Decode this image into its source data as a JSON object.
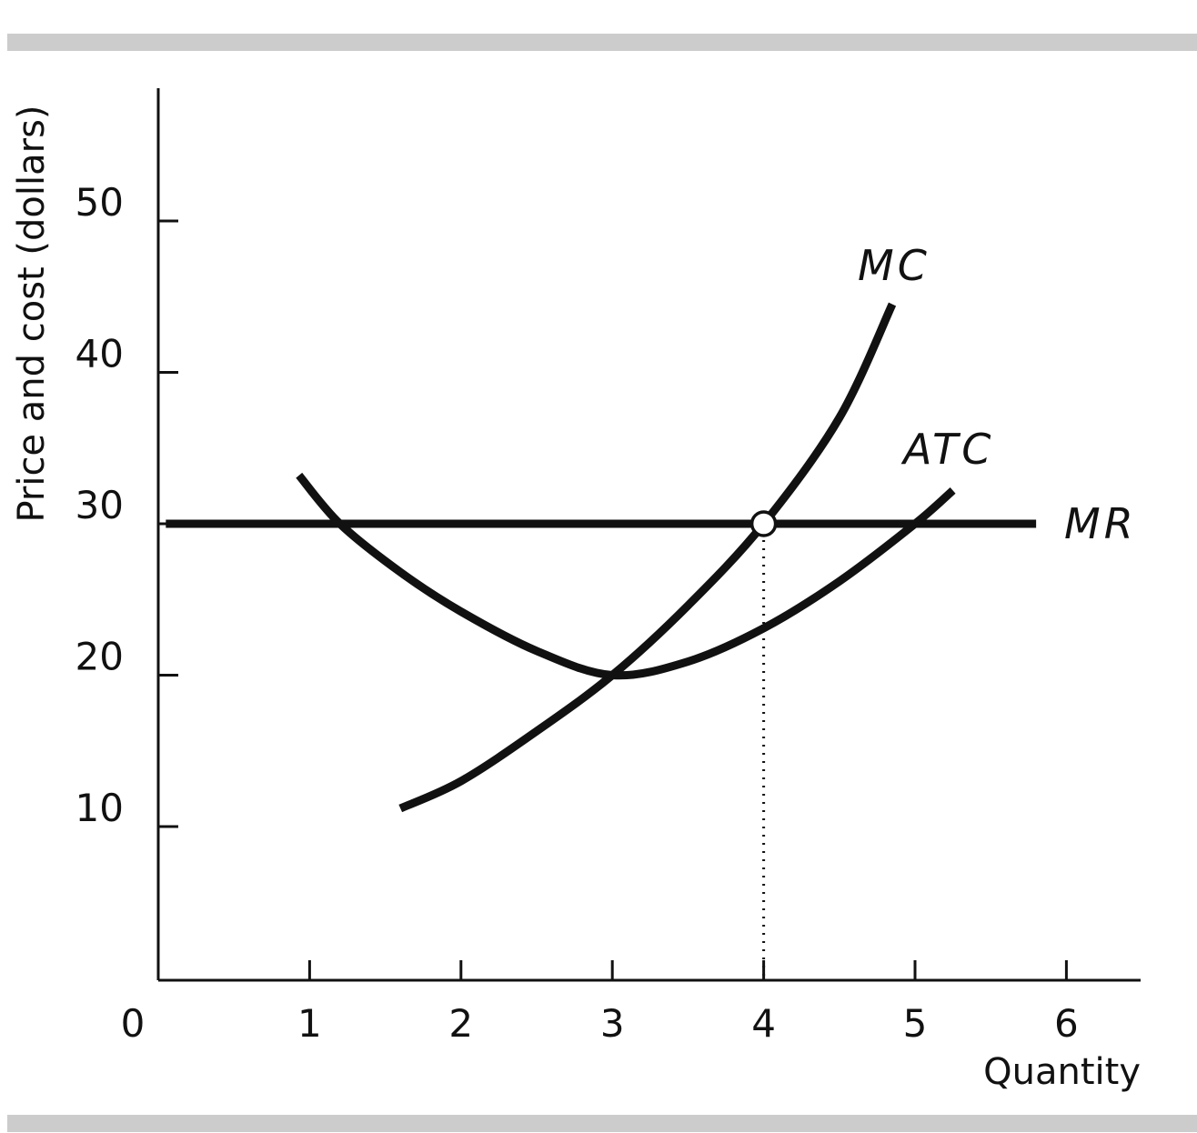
{
  "chart_data": {
    "type": "line",
    "xlabel": "Quantity",
    "ylabel": "Price and cost (dollars)",
    "origin_label": "0",
    "xlim": [
      0,
      6.5
    ],
    "ylim": [
      4.6,
      59
    ],
    "x_ticks": [
      1,
      2,
      3,
      4,
      5,
      6
    ],
    "y_ticks": [
      10,
      20,
      30,
      40,
      50
    ],
    "grid": false,
    "series": [
      {
        "name": "MC",
        "x": [
          1.6,
          2.0,
          2.5,
          3.0,
          3.5,
          4.0,
          4.5,
          4.85
        ],
        "y": [
          11.2,
          13.0,
          16.3,
          20.0,
          24.6,
          30.0,
          37.0,
          44.5
        ]
      },
      {
        "name": "ATC",
        "x": [
          0.93,
          1.2,
          1.6,
          2.0,
          2.5,
          3.0,
          3.5,
          4.0,
          4.5,
          5.0,
          5.25
        ],
        "y": [
          33.2,
          30.0,
          26.8,
          24.2,
          21.6,
          20.0,
          20.9,
          23.1,
          26.2,
          30.0,
          32.2
        ]
      },
      {
        "name": "MR",
        "x": [
          0.05,
          5.8
        ],
        "y": [
          30,
          30
        ]
      }
    ],
    "equilibrium": {
      "x": 4,
      "y": 30
    }
  }
}
